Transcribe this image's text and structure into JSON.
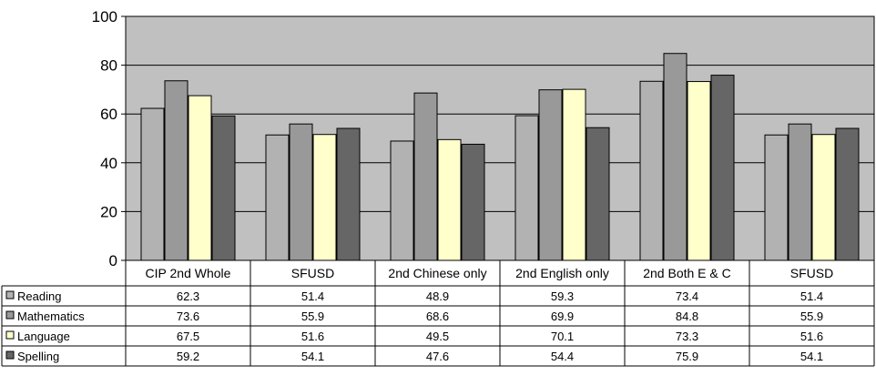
{
  "chart_data": {
    "type": "bar",
    "title": "",
    "xlabel": "",
    "ylabel": "",
    "ylim": [
      0,
      100
    ],
    "yticks": [
      0,
      20,
      40,
      60,
      80,
      100
    ],
    "grid": true,
    "legend_placement": "data-table-left",
    "categories": [
      "CIP 2nd Whole",
      "SFUSD",
      "2nd Chinese only",
      "2nd English only",
      "2nd Both E & C",
      "SFUSD"
    ],
    "series": [
      {
        "name": "Reading",
        "color": "#b2b2b2",
        "values": [
          62.3,
          51.4,
          48.9,
          59.3,
          73.4,
          51.4
        ]
      },
      {
        "name": "Mathematics",
        "color": "#999999",
        "values": [
          73.6,
          55.9,
          68.6,
          69.9,
          84.8,
          55.9
        ]
      },
      {
        "name": "Language",
        "color": "#ffffcc",
        "values": [
          67.5,
          51.6,
          49.5,
          70.1,
          73.3,
          51.6
        ]
      },
      {
        "name": "Spelling",
        "color": "#666666",
        "values": [
          59.2,
          54.1,
          47.6,
          54.4,
          75.9,
          54.1
        ]
      }
    ],
    "data_labels": [
      [
        "62.3",
        "51.4",
        "48.9",
        "59.3",
        "73.4",
        "51.4"
      ],
      [
        "73.6",
        "55.9",
        "68.6",
        "69.9",
        "84.8",
        "55.9"
      ],
      [
        "67.5",
        "51.6",
        "49.5",
        "70.1",
        "73.3",
        "51.6"
      ],
      [
        "59.2",
        "54.1",
        "47.6",
        "54.4",
        "75.9",
        "54.1"
      ]
    ],
    "plot_background": "#c0c0c0"
  }
}
